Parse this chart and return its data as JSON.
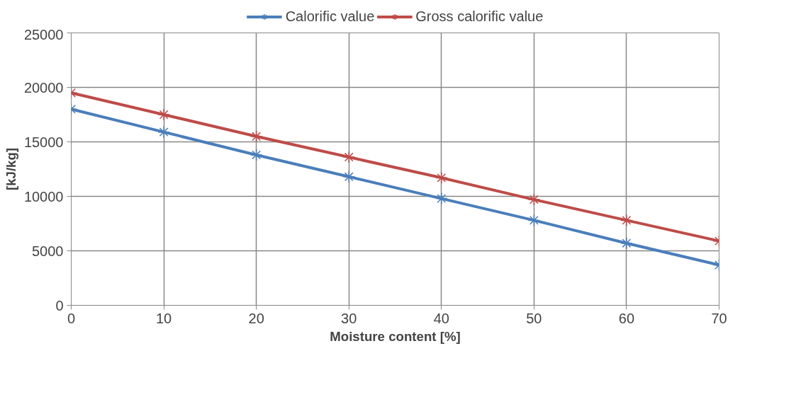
{
  "chart_data": {
    "type": "line",
    "xlabel": "Moisture content [%]",
    "ylabel": "[kJ/kg]",
    "x": [
      0,
      10,
      20,
      30,
      40,
      50,
      60,
      70
    ],
    "series": [
      {
        "name": "Calorific value",
        "color": "#4a7ebb",
        "values": [
          18000,
          15900,
          13800,
          11800,
          9800,
          7800,
          5700,
          3700
        ]
      },
      {
        "name": "Gross calorific value",
        "color": "#be4b48",
        "values": [
          19500,
          17500,
          15500,
          13600,
          11700,
          9700,
          7800,
          5900
        ]
      }
    ],
    "xlim": [
      0,
      70
    ],
    "xticks": [
      0,
      10,
      20,
      30,
      40,
      50,
      60,
      70
    ],
    "ylim": [
      0,
      25000
    ],
    "yticks": [
      0,
      5000,
      10000,
      15000,
      20000,
      25000
    ],
    "grid": true,
    "legend": "top",
    "marker": "cross",
    "line_style": "solid"
  }
}
